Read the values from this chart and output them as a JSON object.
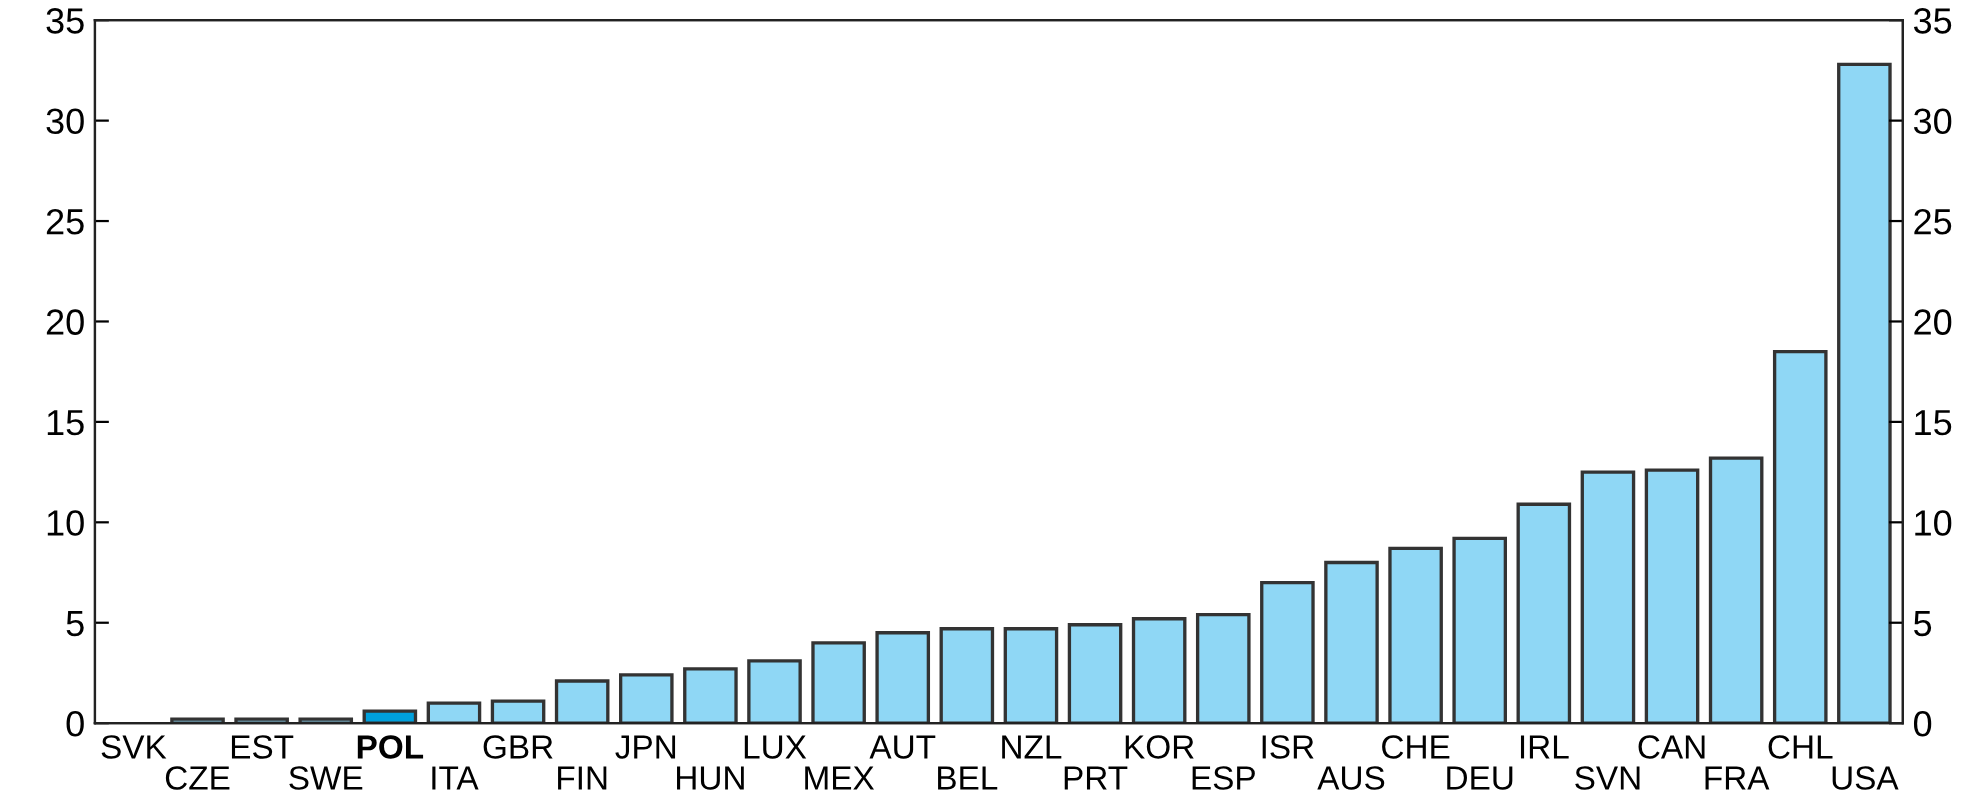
{
  "chart_data": {
    "type": "bar",
    "categories": [
      "SVK",
      "CZE",
      "EST",
      "SWE",
      "POL",
      "ITA",
      "GBR",
      "FIN",
      "JPN",
      "HUN",
      "LUX",
      "MEX",
      "AUT",
      "BEL",
      "NZL",
      "PRT",
      "KOR",
      "ESP",
      "ISR",
      "AUS",
      "CHE",
      "DEU",
      "IRL",
      "SVN",
      "CAN",
      "FRA",
      "CHL",
      "USA"
    ],
    "values": [
      null,
      0.2,
      0.2,
      0.2,
      0.6,
      1.0,
      1.1,
      2.1,
      2.4,
      2.7,
      3.1,
      4.0,
      4.5,
      4.7,
      4.7,
      4.9,
      5.2,
      5.4,
      7.0,
      8.0,
      8.7,
      9.2,
      10.9,
      12.5,
      12.6,
      13.2,
      18.5,
      32.8
    ],
    "colors": [
      "#8fd7f5",
      "#8fd7f5",
      "#8fd7f5",
      "#8fd7f5",
      "#00a0dc",
      "#8fd7f5",
      "#8fd7f5",
      "#8fd7f5",
      "#8fd7f5",
      "#8fd7f5",
      "#8fd7f5",
      "#8fd7f5",
      "#8fd7f5",
      "#8fd7f5",
      "#8fd7f5",
      "#8fd7f5",
      "#8fd7f5",
      "#8fd7f5",
      "#8fd7f5",
      "#8fd7f5",
      "#8fd7f5",
      "#8fd7f5",
      "#8fd7f5",
      "#8fd7f5",
      "#8fd7f5",
      "#8fd7f5",
      "#8fd7f5",
      "#8fd7f5"
    ],
    "ylim": [
      0,
      35
    ],
    "yticks": [
      0,
      5,
      10,
      15,
      20,
      25,
      30,
      35
    ],
    "y2lim": [
      0,
      35
    ],
    "y2ticks": [
      0,
      5,
      10,
      15,
      20,
      25,
      30,
      35
    ],
    "grid": false,
    "legend": false
  }
}
